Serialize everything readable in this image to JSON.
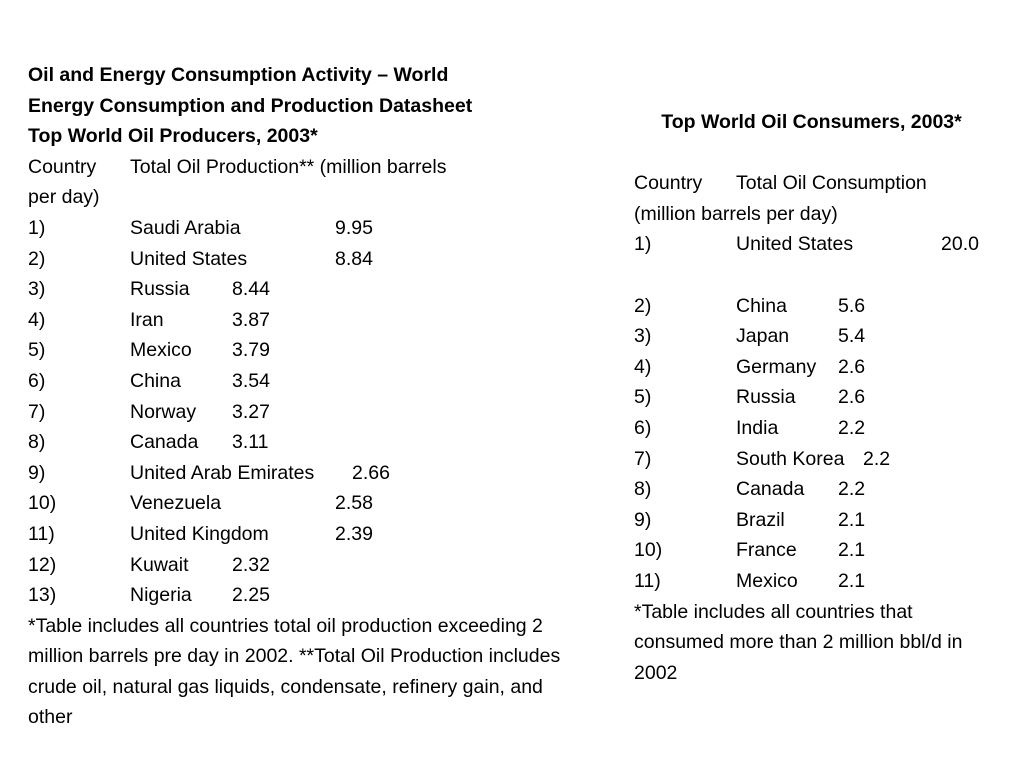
{
  "producers": {
    "title_line1": " Oil and Energy Consumption Activity – World",
    "title_line2": "Energy Consumption and Production Datasheet",
    "subtitle": "Top World Oil Producers, 2003*",
    "header_country": "Country",
    "header_value": "Total Oil Production** (million barrels",
    "header_value_cont": "per day)",
    "rows": [
      {
        "rank": "1)",
        "country": "Saudi Arabia",
        "value": "9.95"
      },
      {
        "rank": "2)",
        "country": "United States",
        "value": "8.84"
      },
      {
        "rank": "3)",
        "country": "Russia",
        "value": "8.44"
      },
      {
        "rank": "4)",
        "country": "Iran",
        "value": "3.87"
      },
      {
        "rank": "5)",
        "country": "Mexico",
        "value": "3.79"
      },
      {
        "rank": "6)",
        "country": "China",
        "value": "3.54"
      },
      {
        "rank": "7)",
        "country": "Norway",
        "value": "3.27"
      },
      {
        "rank": "8)",
        "country": "Canada",
        "value": "3.11"
      },
      {
        "rank": "9)",
        "country": "United Arab Emirates",
        "value": "2.66"
      },
      {
        "rank": "10)",
        "country": "Venezuela",
        "value": "2.58"
      },
      {
        "rank": "11)",
        "country": "United Kingdom",
        "value": "2.39"
      },
      {
        "rank": "12)",
        "country": "Kuwait",
        "value": "2.32"
      },
      {
        "rank": "13)",
        "country": "Nigeria",
        "value": "2.25"
      }
    ],
    "footnote": "*Table includes all countries total oil production exceeding 2 million barrels pre day in 2002. **Total Oil Production includes crude oil, natural gas liquids, condensate, refinery gain, and other"
  },
  "consumers": {
    "title": "Top World Oil Consumers, 2003*",
    "header_country": "Country",
    "header_value": "Total Oil Consumption",
    "header_value_cont": "(million barrels per day)",
    "rows": [
      {
        "rank": "1)",
        "country": "United States",
        "value": "20.0"
      },
      {
        "rank": "2)",
        "country": "China",
        "value": "5.6"
      },
      {
        "rank": "3)",
        "country": "Japan",
        "value": "5.4"
      },
      {
        "rank": "4)",
        "country": "Germany",
        "value": "2.6"
      },
      {
        "rank": "5)",
        "country": "Russia",
        "value": "2.6"
      },
      {
        "rank": "6)",
        "country": "India",
        "value": "2.2"
      },
      {
        "rank": "7)",
        "country": "South Korea",
        "value": "2.2"
      },
      {
        "rank": "8)",
        "country": "Canada",
        "value": "2.2"
      },
      {
        "rank": "9)",
        "country": "Brazil",
        "value": "2.1"
      },
      {
        "rank": "10)",
        "country": "France",
        "value": "2.1"
      },
      {
        "rank": "11)",
        "country": "Mexico",
        "value": "2.1"
      }
    ],
    "footnote": "*Table includes all countries that consumed more than 2 million bbl/d in 2002"
  }
}
